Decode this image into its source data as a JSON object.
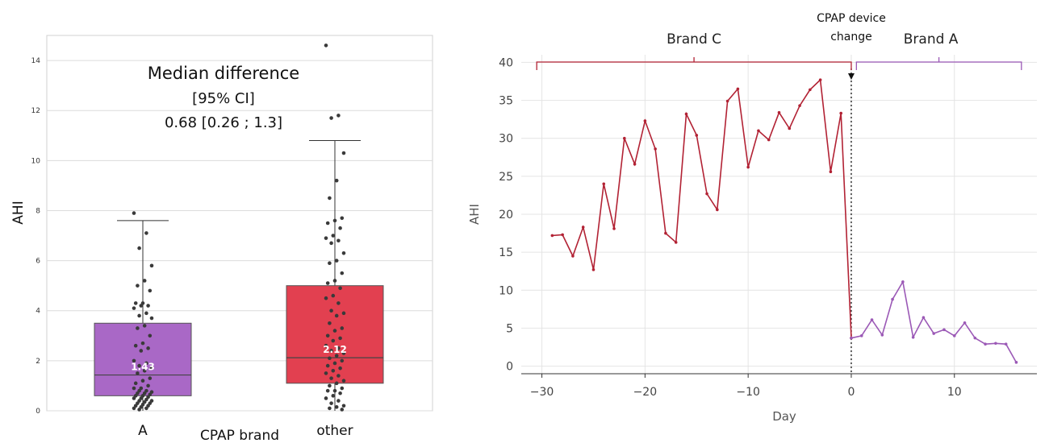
{
  "chart_data": [
    {
      "type": "box",
      "title": "",
      "xlabel": "CPAP brand",
      "ylabel": "AHI",
      "ylim": [
        0,
        15
      ],
      "yticks": [
        0,
        2,
        4,
        6,
        8,
        10,
        12,
        14
      ],
      "grid": true,
      "annotation": [
        "Median difference",
        "[95% CI]",
        "0.68 [0.26 ; 1.3]"
      ],
      "categories": [
        "A",
        "other"
      ],
      "boxes": [
        {
          "name": "A",
          "color": "#a968c6",
          "q1": 0.6,
          "median": 1.43,
          "q3": 3.5,
          "whisker_low": 0.0,
          "whisker_high": 7.6,
          "median_label": "1.43",
          "points": [
            7.9,
            7.1,
            6.5,
            5.8,
            5.2,
            5.0,
            4.8,
            4.3,
            4.3,
            4.2,
            4.2,
            4.1,
            3.9,
            3.8,
            3.7,
            3.4,
            3.3,
            3.0,
            2.7,
            2.6,
            2.5,
            2.4,
            2.0,
            1.9,
            1.8,
            1.7,
            1.6,
            1.5,
            1.3,
            1.2,
            1.1,
            1.0,
            0.9,
            0.9,
            0.8,
            0.8,
            0.75,
            0.7,
            0.7,
            0.65,
            0.6,
            0.6,
            0.55,
            0.5,
            0.5,
            0.45,
            0.4,
            0.4,
            0.35,
            0.3,
            0.3,
            0.25,
            0.2,
            0.2,
            0.15,
            0.1,
            0.1,
            0.05
          ]
        },
        {
          "name": "other",
          "color": "#e24050",
          "q1": 1.1,
          "median": 2.12,
          "q3": 5.0,
          "whisker_low": 0.0,
          "whisker_high": 10.8,
          "median_label": "2.12",
          "points": [
            14.6,
            11.8,
            11.7,
            10.3,
            9.2,
            8.5,
            7.7,
            7.6,
            7.5,
            7.3,
            7.0,
            6.9,
            6.8,
            6.7,
            6.3,
            6.0,
            5.9,
            5.5,
            5.2,
            5.1,
            4.9,
            4.6,
            4.5,
            4.3,
            4.0,
            3.9,
            3.8,
            3.5,
            3.3,
            3.2,
            3.0,
            2.9,
            2.8,
            2.6,
            2.5,
            2.4,
            2.3,
            2.2,
            2.1,
            2.0,
            1.9,
            1.8,
            1.7,
            1.6,
            1.5,
            1.4,
            1.3,
            1.2,
            1.1,
            1.0,
            0.9,
            0.8,
            0.8,
            0.7,
            0.6,
            0.5,
            0.4,
            0.3,
            0.2,
            0.15,
            0.1,
            0.05
          ]
        }
      ]
    },
    {
      "type": "line",
      "title": "",
      "xlabel": "Day",
      "ylabel": "AHI",
      "xlim": [
        -32,
        18
      ],
      "ylim": [
        -1,
        41
      ],
      "xticks": [
        -30,
        -20,
        -10,
        0,
        10
      ],
      "yticks": [
        0,
        5,
        10,
        15,
        20,
        25,
        30,
        35,
        40
      ],
      "grid": true,
      "series": [
        {
          "name": "Brand C",
          "color": "#b22234",
          "x": [
            -29,
            -28,
            -27,
            -26,
            -25,
            -24,
            -23,
            -22,
            -21,
            -20,
            -19,
            -18,
            -17,
            -16,
            -15,
            -14,
            -13,
            -12,
            -11,
            -10,
            -9,
            -8,
            -7,
            -6,
            -5,
            -4,
            -3,
            -2,
            -1,
            0
          ],
          "y": [
            17.2,
            17.3,
            14.5,
            18.3,
            12.7,
            24.0,
            18.1,
            30.0,
            26.6,
            32.3,
            28.6,
            17.5,
            16.3,
            33.2,
            30.4,
            22.7,
            20.6,
            34.9,
            36.5,
            26.2,
            31.0,
            29.8,
            33.4,
            31.3,
            34.3,
            36.4,
            37.7,
            25.6,
            33.3,
            3.7
          ]
        },
        {
          "name": "Brand A",
          "color": "#9b59b6",
          "x": [
            0,
            1,
            2,
            3,
            4,
            5,
            6,
            7,
            8,
            9,
            10,
            11,
            12,
            13,
            14,
            15,
            16
          ],
          "y": [
            3.7,
            4.0,
            6.1,
            4.1,
            8.8,
            11.1,
            3.8,
            6.4,
            4.3,
            4.8,
            4.0,
            5.7,
            3.7,
            2.9,
            3.0,
            2.9,
            0.5
          ]
        }
      ],
      "annotations": [
        {
          "text": "Brand C",
          "x_from": -30.5,
          "x_to": 0
        },
        {
          "text": "Brand A",
          "x_from": 0.5,
          "x_to": 16.5
        },
        {
          "text_lines": [
            "CPAP device",
            "change"
          ],
          "x": 0
        }
      ]
    }
  ]
}
